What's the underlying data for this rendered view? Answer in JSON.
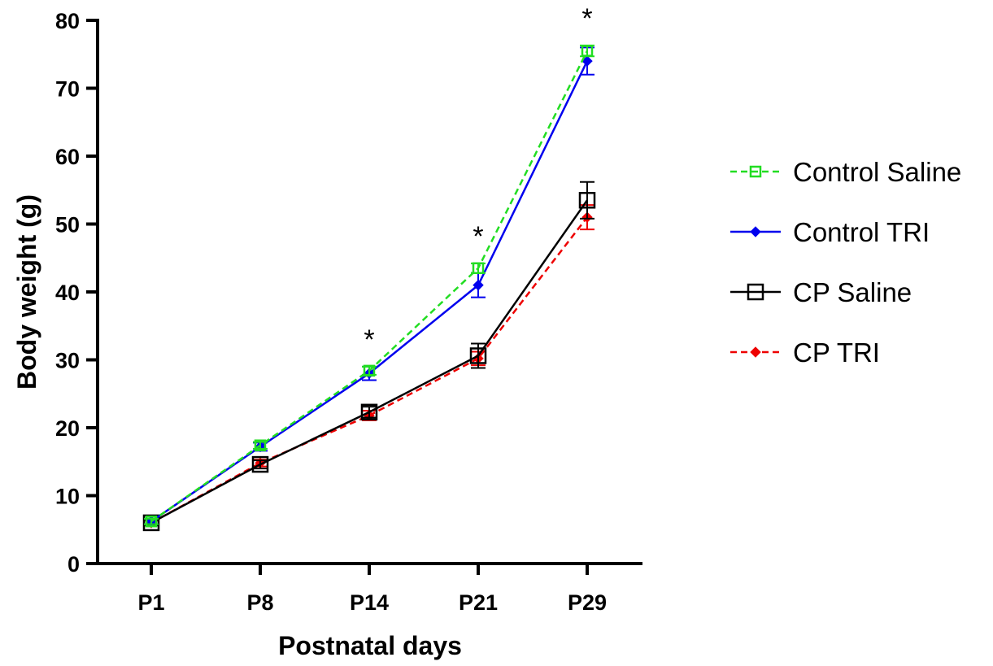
{
  "chart_data": {
    "type": "line",
    "xlabel": "Postnatal days",
    "ylabel": "Body weight (g)",
    "categories": [
      "P1",
      "P8",
      "P14",
      "P21",
      "P29"
    ],
    "ylim": [
      0,
      80
    ],
    "yticks": [
      0,
      10,
      20,
      30,
      40,
      50,
      60,
      70,
      80
    ],
    "grid": false,
    "legend_position": "right",
    "series": [
      {
        "name": "Control Saline",
        "values": [
          6.2,
          17.4,
          28.4,
          43.5,
          75.5
        ],
        "errors": [
          0.4,
          0.5,
          0.6,
          0.7,
          0.8
        ],
        "color": "#22dd22",
        "line_style": "dashed",
        "marker": "open-square-small"
      },
      {
        "name": "Control TRI",
        "values": [
          6.2,
          17.2,
          28.0,
          41.0,
          74.0
        ],
        "errors": [
          0.4,
          0.6,
          1.0,
          1.8,
          2.0
        ],
        "color": "#0000ee",
        "line_style": "solid",
        "marker": "filled-diamond"
      },
      {
        "name": "CP Saline",
        "values": [
          6.0,
          14.6,
          22.3,
          30.6,
          53.5
        ],
        "errors": [
          0.4,
          0.6,
          0.8,
          1.8,
          2.7
        ],
        "color": "#000000",
        "line_style": "solid",
        "marker": "open-square-large"
      },
      {
        "name": "CP TRI",
        "values": [
          6.0,
          14.8,
          21.8,
          30.2,
          51.0
        ],
        "errors": [
          0.3,
          0.5,
          0.7,
          1.0,
          1.8
        ],
        "color": "#ee0000",
        "line_style": "dashed",
        "marker": "filled-diamond"
      }
    ],
    "annotations": [
      {
        "category": "P14",
        "text": "*"
      },
      {
        "category": "P21",
        "text": "*"
      },
      {
        "category": "P29",
        "text": "*"
      }
    ]
  }
}
